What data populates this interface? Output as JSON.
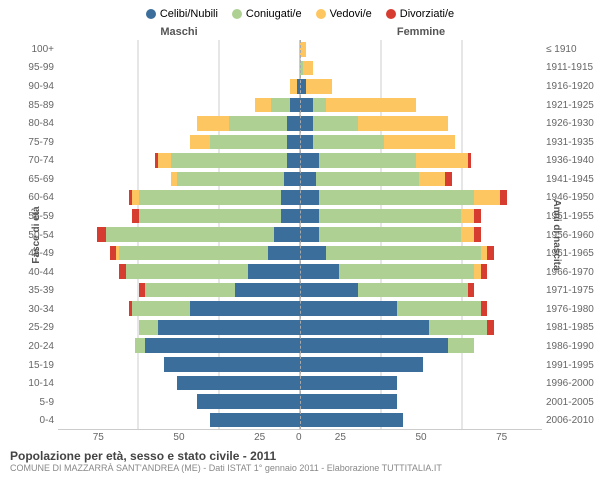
{
  "legend": [
    {
      "label": "Celibi/Nubili",
      "color": "#3b6e9b"
    },
    {
      "label": "Coniugati/e",
      "color": "#aed093"
    },
    {
      "label": "Vedovi/e",
      "color": "#fec660"
    },
    {
      "label": "Divorziati/e",
      "color": "#d73c30"
    }
  ],
  "header_left": "Maschi",
  "header_right": "Femmine",
  "axis_left_title": "Fasce di età",
  "axis_right_title": "Anni di nascita",
  "max": 75,
  "xticks": [
    "25",
    "50",
    "75"
  ],
  "xzero": "0",
  "footer_title": "Popolazione per età, sesso e stato civile - 2011",
  "footer_sub": "COMUNE DI MAZZARRÀ SANT'ANDREA (ME) - Dati ISTAT 1° gennaio 2011 - Elaborazione TUTTITALIA.IT",
  "rows": [
    {
      "age": "100+",
      "birth": "≤ 1910",
      "m": [
        0,
        0,
        0,
        0
      ],
      "f": [
        0,
        0,
        2,
        0
      ]
    },
    {
      "age": "95-99",
      "birth": "1911-1915",
      "m": [
        0,
        0,
        0,
        0
      ],
      "f": [
        0,
        1,
        3,
        0
      ]
    },
    {
      "age": "90-94",
      "birth": "1916-1920",
      "m": [
        1,
        0,
        2,
        0
      ],
      "f": [
        2,
        0,
        8,
        0
      ]
    },
    {
      "age": "85-89",
      "birth": "1921-1925",
      "m": [
        3,
        6,
        5,
        0
      ],
      "f": [
        4,
        4,
        28,
        0
      ]
    },
    {
      "age": "80-84",
      "birth": "1926-1930",
      "m": [
        4,
        18,
        10,
        0
      ],
      "f": [
        4,
        14,
        28,
        0
      ]
    },
    {
      "age": "75-79",
      "birth": "1931-1935",
      "m": [
        4,
        24,
        6,
        0
      ],
      "f": [
        4,
        22,
        22,
        0
      ]
    },
    {
      "age": "70-74",
      "birth": "1936-1940",
      "m": [
        4,
        36,
        4,
        1
      ],
      "f": [
        6,
        30,
        16,
        1
      ]
    },
    {
      "age": "65-69",
      "birth": "1941-1945",
      "m": [
        5,
        33,
        2,
        0
      ],
      "f": [
        5,
        32,
        8,
        2
      ]
    },
    {
      "age": "60-64",
      "birth": "1946-1950",
      "m": [
        6,
        44,
        2,
        1
      ],
      "f": [
        6,
        48,
        8,
        2
      ]
    },
    {
      "age": "55-59",
      "birth": "1951-1955",
      "m": [
        6,
        44,
        0,
        2
      ],
      "f": [
        6,
        44,
        4,
        2
      ]
    },
    {
      "age": "50-54",
      "birth": "1956-1960",
      "m": [
        8,
        52,
        0,
        3
      ],
      "f": [
        6,
        44,
        4,
        2
      ]
    },
    {
      "age": "45-49",
      "birth": "1961-1965",
      "m": [
        10,
        46,
        1,
        2
      ],
      "f": [
        8,
        48,
        2,
        2
      ]
    },
    {
      "age": "40-44",
      "birth": "1966-1970",
      "m": [
        16,
        38,
        0,
        2
      ],
      "f": [
        12,
        42,
        2,
        2
      ]
    },
    {
      "age": "35-39",
      "birth": "1971-1975",
      "m": [
        20,
        28,
        0,
        2
      ],
      "f": [
        18,
        34,
        0,
        2
      ]
    },
    {
      "age": "30-34",
      "birth": "1976-1980",
      "m": [
        34,
        18,
        0,
        1
      ],
      "f": [
        30,
        26,
        0,
        2
      ]
    },
    {
      "age": "25-29",
      "birth": "1981-1985",
      "m": [
        44,
        6,
        0,
        0
      ],
      "f": [
        40,
        18,
        0,
        2
      ]
    },
    {
      "age": "20-24",
      "birth": "1986-1990",
      "m": [
        48,
        3,
        0,
        0
      ],
      "f": [
        46,
        8,
        0,
        0
      ]
    },
    {
      "age": "15-19",
      "birth": "1991-1995",
      "m": [
        42,
        0,
        0,
        0
      ],
      "f": [
        38,
        0,
        0,
        0
      ]
    },
    {
      "age": "10-14",
      "birth": "1996-2000",
      "m": [
        38,
        0,
        0,
        0
      ],
      "f": [
        30,
        0,
        0,
        0
      ]
    },
    {
      "age": "5-9",
      "birth": "2001-2005",
      "m": [
        32,
        0,
        0,
        0
      ],
      "f": [
        30,
        0,
        0,
        0
      ]
    },
    {
      "age": "0-4",
      "birth": "2006-2010",
      "m": [
        28,
        0,
        0,
        0
      ],
      "f": [
        32,
        0,
        0,
        0
      ]
    }
  ]
}
